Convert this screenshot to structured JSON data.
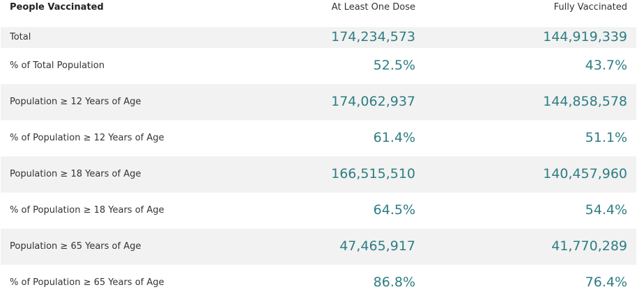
{
  "header": {
    "title": "People Vaccinated",
    "col_one_dose": "At Least One Dose",
    "col_fully": "Fully Vaccinated"
  },
  "rows": [
    {
      "label": "Total",
      "one_dose": "174,234,573",
      "fully": "144,919,339"
    },
    {
      "label": "% of Total Population",
      "one_dose": "52.5%",
      "fully": "43.7%"
    },
    {
      "label": "Population ≥ 12 Years of Age",
      "one_dose": "174,062,937",
      "fully": "144,858,578"
    },
    {
      "label": "% of Population ≥ 12 Years of Age",
      "one_dose": "61.4%",
      "fully": "51.1%"
    },
    {
      "label": "Population ≥ 18 Years of Age",
      "one_dose": "166,515,510",
      "fully": "140,457,960"
    },
    {
      "label": "% of Population ≥ 18 Years of Age",
      "one_dose": "64.5%",
      "fully": "54.4%"
    },
    {
      "label": "Population ≥ 65 Years of Age",
      "one_dose": "47,465,917",
      "fully": "41,770,289"
    },
    {
      "label": "% of Population ≥ 65 Years of Age",
      "one_dose": "86.8%",
      "fully": "76.4%"
    }
  ],
  "colors": {
    "value_text": "#2e7d82",
    "alt_row_background": "#f2f2f2"
  }
}
